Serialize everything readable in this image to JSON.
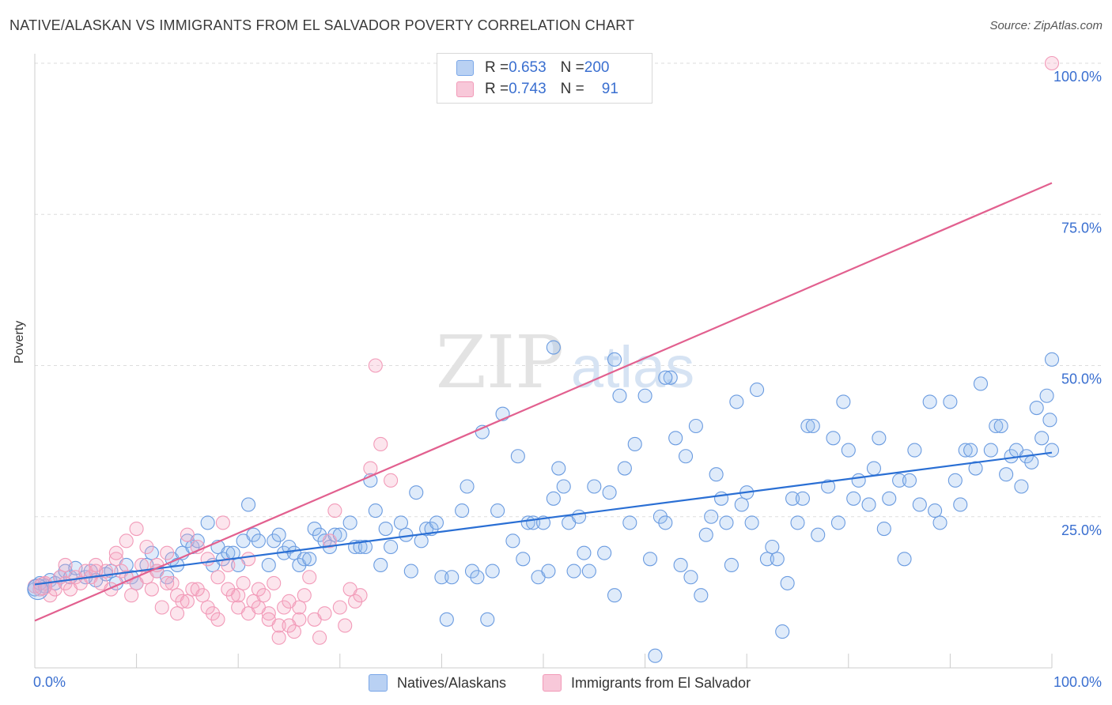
{
  "header": {
    "title": "NATIVE/ALASKAN VS IMMIGRANTS FROM EL SALVADOR POVERTY CORRELATION CHART",
    "source": "Source: ZipAtlas.com"
  },
  "watermark": {
    "zip": "ZIP",
    "atlas": "atlas"
  },
  "legend_top": [
    {
      "r_label": "R = ",
      "r_value": "0.653",
      "n_label": "N = ",
      "n_value": "200",
      "color": "#7aa7e8"
    },
    {
      "r_label": "R = ",
      "r_value": "0.743",
      "n_label": "N = ",
      "n_value": "91",
      "color": "#f29ab8"
    }
  ],
  "chart_data": {
    "type": "scatter",
    "title": "NATIVE/ALASKAN VS IMMIGRANTS FROM EL SALVADOR POVERTY CORRELATION CHART",
    "xlabel": "",
    "ylabel": "Poverty",
    "xlim": [
      0,
      100
    ],
    "ylim": [
      0,
      100
    ],
    "x_tick_labels": [
      "0.0%",
      "100.0%"
    ],
    "y_tick_labels": [
      "25.0%",
      "50.0%",
      "75.0%",
      "100.0%"
    ],
    "y_ticks": [
      25,
      50,
      75,
      100
    ],
    "grid": true,
    "legend_position": "bottom",
    "series": [
      {
        "name": "Natives/Alaskans",
        "color": "#6a9be0",
        "line_color": "#2a6fd4",
        "R": 0.653,
        "N": 200,
        "trend": {
          "x": [
            0,
            100
          ],
          "y": [
            13.8,
            35.6
          ]
        },
        "points": [
          [
            0,
            13
          ],
          [
            0.5,
            14
          ],
          [
            1,
            13.5
          ],
          [
            1.5,
            14.5
          ],
          [
            2,
            14
          ],
          [
            2.5,
            15
          ],
          [
            3,
            16
          ],
          [
            3.5,
            15
          ],
          [
            4,
            16.5
          ],
          [
            5,
            15
          ],
          [
            5.5,
            16
          ],
          [
            6,
            14.5
          ],
          [
            7,
            15.5
          ],
          [
            7.5,
            16
          ],
          [
            8,
            14
          ],
          [
            9,
            17
          ],
          [
            9.5,
            15
          ],
          [
            10,
            14
          ],
          [
            11,
            17
          ],
          [
            11.5,
            19
          ],
          [
            12,
            16
          ],
          [
            13,
            15
          ],
          [
            13.5,
            18
          ],
          [
            14,
            17
          ],
          [
            14.5,
            19
          ],
          [
            15,
            21
          ],
          [
            15.5,
            20
          ],
          [
            16,
            21
          ],
          [
            17,
            24
          ],
          [
            17.5,
            17
          ],
          [
            18,
            20
          ],
          [
            18.5,
            18
          ],
          [
            19,
            19
          ],
          [
            19.5,
            19
          ],
          [
            20,
            17
          ],
          [
            20.5,
            21
          ],
          [
            21,
            27
          ],
          [
            21.5,
            22
          ],
          [
            22,
            21
          ],
          [
            23,
            17
          ],
          [
            23.5,
            21
          ],
          [
            24,
            22
          ],
          [
            24.5,
            19
          ],
          [
            25,
            20
          ],
          [
            25.5,
            19
          ],
          [
            26,
            17
          ],
          [
            26.5,
            18
          ],
          [
            27,
            18
          ],
          [
            27.5,
            23
          ],
          [
            28,
            22
          ],
          [
            28.5,
            21
          ],
          [
            29,
            20
          ],
          [
            29.5,
            22
          ],
          [
            30,
            22
          ],
          [
            31,
            24
          ],
          [
            31.5,
            20
          ],
          [
            32,
            20
          ],
          [
            32.5,
            20
          ],
          [
            33,
            31
          ],
          [
            33.5,
            26
          ],
          [
            34,
            17
          ],
          [
            34.5,
            23
          ],
          [
            35,
            20
          ],
          [
            36,
            24
          ],
          [
            36.5,
            22
          ],
          [
            37,
            16
          ],
          [
            37.5,
            29
          ],
          [
            38,
            21
          ],
          [
            38.5,
            23
          ],
          [
            39,
            23
          ],
          [
            39.5,
            24
          ],
          [
            40,
            15
          ],
          [
            40.5,
            8
          ],
          [
            41,
            15
          ],
          [
            42,
            26
          ],
          [
            42.5,
            30
          ],
          [
            43,
            16
          ],
          [
            43.5,
            15
          ],
          [
            44,
            39
          ],
          [
            44.5,
            8
          ],
          [
            45,
            16
          ],
          [
            45.5,
            26
          ],
          [
            46,
            42
          ],
          [
            47,
            21
          ],
          [
            47.5,
            35
          ],
          [
            48,
            18
          ],
          [
            48.5,
            24
          ],
          [
            49,
            24
          ],
          [
            49.5,
            15
          ],
          [
            50,
            24
          ],
          [
            50.5,
            16
          ],
          [
            51,
            28
          ],
          [
            51.5,
            33
          ],
          [
            52,
            30
          ],
          [
            52.5,
            24
          ],
          [
            53,
            16
          ],
          [
            53.5,
            25
          ],
          [
            54,
            19
          ],
          [
            54.5,
            16
          ],
          [
            55,
            30
          ],
          [
            56,
            19
          ],
          [
            56.5,
            29
          ],
          [
            57,
            12
          ],
          [
            57.5,
            45
          ],
          [
            58,
            33
          ],
          [
            58.5,
            24
          ],
          [
            59,
            37
          ],
          [
            60,
            45
          ],
          [
            60.5,
            18
          ],
          [
            61,
            2
          ],
          [
            61.5,
            25
          ],
          [
            62,
            24
          ],
          [
            62.5,
            48
          ],
          [
            63,
            38
          ],
          [
            63.5,
            17
          ],
          [
            64,
            35
          ],
          [
            64.5,
            15
          ],
          [
            65,
            40
          ],
          [
            65.5,
            12
          ],
          [
            66,
            22
          ],
          [
            66.5,
            25
          ],
          [
            67,
            32
          ],
          [
            67.5,
            28
          ],
          [
            68,
            24
          ],
          [
            68.5,
            17
          ],
          [
            69,
            44
          ],
          [
            69.5,
            27
          ],
          [
            70,
            29
          ],
          [
            70.5,
            24
          ],
          [
            71,
            46
          ],
          [
            72,
            18
          ],
          [
            72.5,
            20
          ],
          [
            73,
            18
          ],
          [
            73.5,
            6
          ],
          [
            74,
            14
          ],
          [
            74.5,
            28
          ],
          [
            75,
            24
          ],
          [
            75.5,
            28
          ],
          [
            76,
            40
          ],
          [
            76.5,
            40
          ],
          [
            77,
            22
          ],
          [
            78,
            30
          ],
          [
            78.5,
            38
          ],
          [
            79,
            24
          ],
          [
            79.5,
            44
          ],
          [
            80,
            36
          ],
          [
            80.5,
            28
          ],
          [
            81,
            31
          ],
          [
            82,
            27
          ],
          [
            82.5,
            33
          ],
          [
            83,
            38
          ],
          [
            83.5,
            23
          ],
          [
            84,
            28
          ],
          [
            85,
            31
          ],
          [
            85.5,
            18
          ],
          [
            86,
            31
          ],
          [
            86.5,
            36
          ],
          [
            87,
            27
          ],
          [
            88,
            44
          ],
          [
            88.5,
            26
          ],
          [
            89,
            24
          ],
          [
            90,
            44
          ],
          [
            90.5,
            31
          ],
          [
            91,
            27
          ],
          [
            91.5,
            36
          ],
          [
            92,
            36
          ],
          [
            92.5,
            33
          ],
          [
            93,
            47
          ],
          [
            94,
            36
          ],
          [
            94.5,
            40
          ],
          [
            95,
            40
          ],
          [
            95.5,
            32
          ],
          [
            96,
            35
          ],
          [
            96.5,
            36
          ],
          [
            97,
            30
          ],
          [
            97.5,
            35
          ],
          [
            98,
            34
          ],
          [
            98.5,
            43
          ],
          [
            99,
            38
          ],
          [
            99.5,
            45
          ],
          [
            99.8,
            41
          ],
          [
            100,
            36
          ],
          [
            100,
            51
          ],
          [
            51,
            53
          ],
          [
            57,
            51
          ],
          [
            62,
            48
          ]
        ]
      },
      {
        "name": "Immigrants from El Salvador",
        "color": "#f29ab8",
        "line_color": "#e2608f",
        "R": 0.743,
        "N": 91,
        "trend": {
          "x": [
            0,
            100
          ],
          "y": [
            7.8,
            80.2
          ]
        },
        "points": [
          [
            0,
            13.5
          ],
          [
            0.5,
            13
          ],
          [
            1,
            14
          ],
          [
            1.5,
            12
          ],
          [
            2,
            13
          ],
          [
            2.5,
            15
          ],
          [
            3,
            14
          ],
          [
            3.5,
            13
          ],
          [
            4,
            15
          ],
          [
            4.5,
            14
          ],
          [
            5,
            16
          ],
          [
            5.5,
            15
          ],
          [
            6,
            17
          ],
          [
            6.5,
            14
          ],
          [
            7,
            16
          ],
          [
            7.5,
            13
          ],
          [
            8,
            18
          ],
          [
            8.5,
            16
          ],
          [
            9,
            15
          ],
          [
            9.5,
            12
          ],
          [
            10,
            14
          ],
          [
            10.5,
            17
          ],
          [
            11,
            15
          ],
          [
            11.5,
            13
          ],
          [
            12,
            16
          ],
          [
            12.5,
            10
          ],
          [
            13,
            19
          ],
          [
            13.5,
            14
          ],
          [
            14,
            12
          ],
          [
            14.5,
            11
          ],
          [
            15,
            22
          ],
          [
            15.5,
            13
          ],
          [
            16,
            20
          ],
          [
            16.5,
            12
          ],
          [
            17,
            18
          ],
          [
            17.5,
            9
          ],
          [
            18,
            15
          ],
          [
            18.5,
            24
          ],
          [
            19,
            17
          ],
          [
            19.5,
            12
          ],
          [
            20,
            10
          ],
          [
            20.5,
            14
          ],
          [
            21,
            18
          ],
          [
            21.5,
            11
          ],
          [
            22,
            13
          ],
          [
            22.5,
            12
          ],
          [
            23,
            9
          ],
          [
            23.5,
            14
          ],
          [
            24,
            7
          ],
          [
            24.5,
            10
          ],
          [
            25,
            11
          ],
          [
            25.5,
            6
          ],
          [
            26,
            8
          ],
          [
            26.5,
            12
          ],
          [
            27,
            15
          ],
          [
            27.5,
            8
          ],
          [
            28,
            5
          ],
          [
            28.5,
            9
          ],
          [
            29,
            21
          ],
          [
            29.5,
            26
          ],
          [
            30,
            10
          ],
          [
            30.5,
            7
          ],
          [
            31,
            13
          ],
          [
            31.5,
            11
          ],
          [
            32,
            12
          ],
          [
            33,
            33
          ],
          [
            33.5,
            50
          ],
          [
            34,
            37
          ],
          [
            35,
            31
          ],
          [
            3,
            17
          ],
          [
            6,
            16
          ],
          [
            8,
            19
          ],
          [
            9,
            21
          ],
          [
            10,
            23
          ],
          [
            11,
            20
          ],
          [
            12,
            17
          ],
          [
            13,
            14
          ],
          [
            14,
            9
          ],
          [
            15,
            11
          ],
          [
            16,
            13
          ],
          [
            17,
            10
          ],
          [
            18,
            8
          ],
          [
            19,
            13
          ],
          [
            20,
            12
          ],
          [
            21,
            9
          ],
          [
            22,
            10
          ],
          [
            23,
            8
          ],
          [
            24,
            5
          ],
          [
            25,
            7
          ],
          [
            26,
            10
          ],
          [
            100,
            100
          ]
        ]
      }
    ]
  },
  "legend_bottom": [
    {
      "label": "Natives/Alaskans",
      "color": "#7aa7e8"
    },
    {
      "label": "Immigrants from El Salvador",
      "color": "#f29ab8"
    }
  ]
}
